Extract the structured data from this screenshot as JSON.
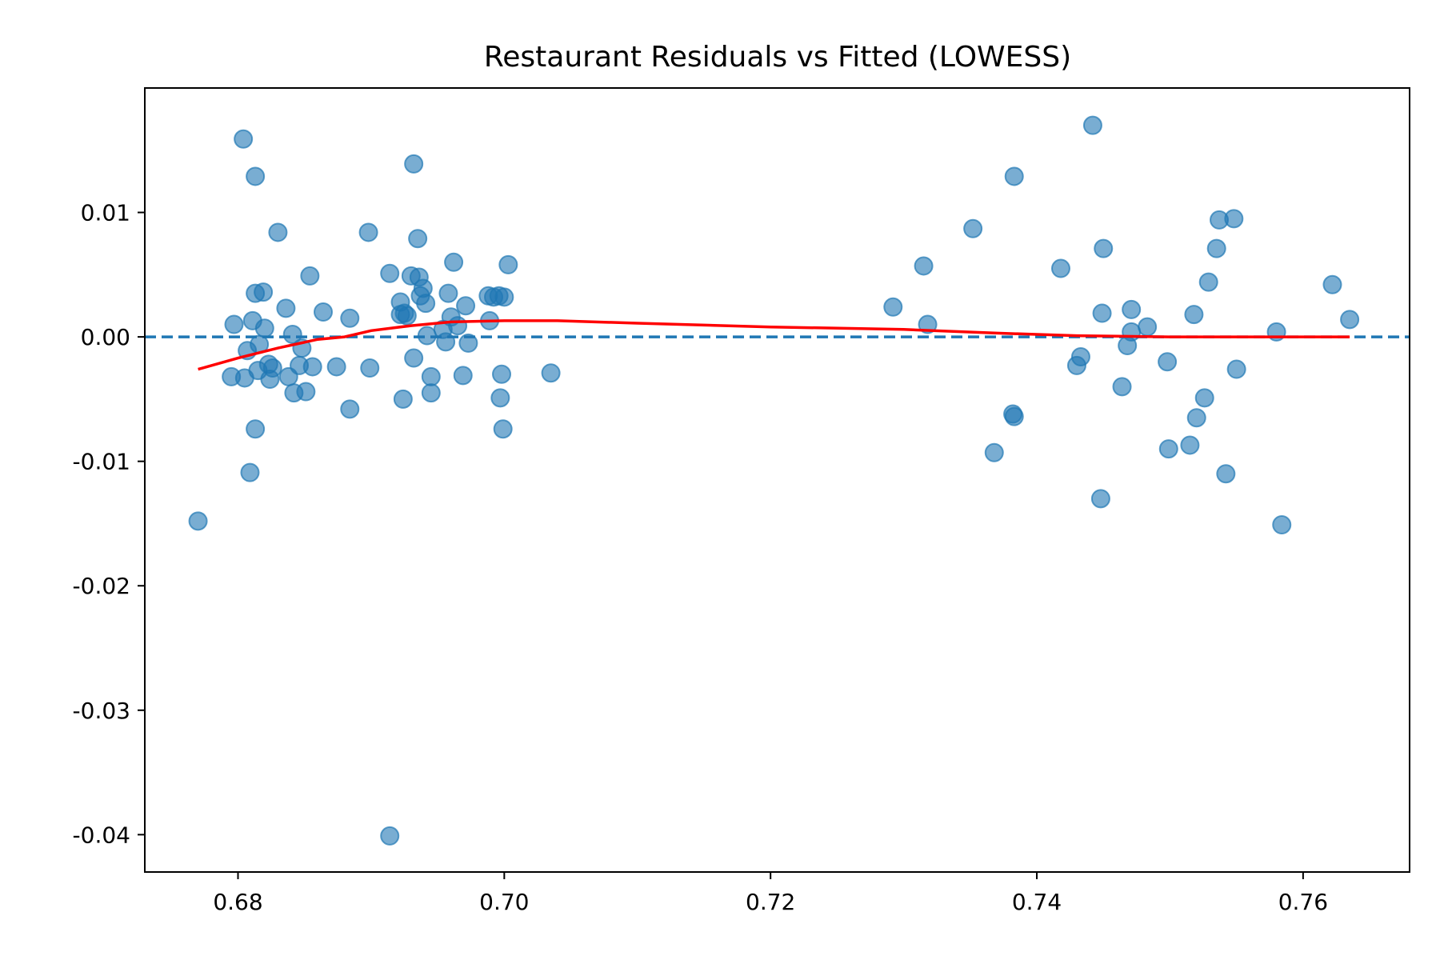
{
  "chart_data": {
    "type": "scatter",
    "title": "Restaurant Residuals vs Fitted (LOWESS)",
    "xlabel": "",
    "ylabel": "",
    "xlim": [
      0.673,
      0.768
    ],
    "ylim": [
      -0.043,
      0.02
    ],
    "grid": false,
    "x_ticks": [
      0.68,
      0.7,
      0.72,
      0.74,
      0.76
    ],
    "x_tick_labels": [
      "0.68",
      "0.70",
      "0.72",
      "0.74",
      "0.76"
    ],
    "y_ticks": [
      0.01,
      0.0,
      -0.01,
      -0.02,
      -0.03,
      -0.04
    ],
    "y_tick_labels": [
      "0.01",
      "0.00",
      "-0.01",
      "-0.02",
      "-0.03",
      "-0.04"
    ],
    "reference_line": {
      "y": 0.0,
      "style": "dashed",
      "color": "#1f77b4"
    },
    "colors": {
      "points": "#1f77b4",
      "lowess": "#ff0000"
    },
    "series": [
      {
        "kind": "points",
        "points": [
          [
            0.677,
            -0.0148
          ],
          [
            0.6797,
            0.001
          ],
          [
            0.6795,
            -0.0032
          ],
          [
            0.6804,
            0.0159
          ],
          [
            0.6805,
            -0.0033
          ],
          [
            0.6807,
            -0.0011
          ],
          [
            0.6809,
            -0.0109
          ],
          [
            0.6811,
            0.0013
          ],
          [
            0.6813,
            0.0129
          ],
          [
            0.6813,
            0.0035
          ],
          [
            0.6813,
            -0.0074
          ],
          [
            0.6815,
            -0.0027
          ],
          [
            0.6816,
            -0.0006
          ],
          [
            0.6819,
            0.0036
          ],
          [
            0.682,
            0.0007
          ],
          [
            0.6823,
            -0.0022
          ],
          [
            0.6824,
            -0.0034
          ],
          [
            0.6826,
            -0.0025
          ],
          [
            0.683,
            0.0084
          ],
          [
            0.6836,
            0.0023
          ],
          [
            0.6838,
            -0.0032
          ],
          [
            0.6841,
            0.0002
          ],
          [
            0.6842,
            -0.0045
          ],
          [
            0.6846,
            -0.0023
          ],
          [
            0.6848,
            -0.0009
          ],
          [
            0.6851,
            -0.0044
          ],
          [
            0.6854,
            0.0049
          ],
          [
            0.6856,
            -0.0024
          ],
          [
            0.6864,
            0.002
          ],
          [
            0.6874,
            -0.0024
          ],
          [
            0.6884,
            0.0015
          ],
          [
            0.6884,
            -0.0058
          ],
          [
            0.6898,
            0.0084
          ],
          [
            0.6899,
            -0.0025
          ],
          [
            0.6914,
            0.0051
          ],
          [
            0.6914,
            -0.0401
          ],
          [
            0.6922,
            0.0028
          ],
          [
            0.6922,
            0.0018
          ],
          [
            0.6924,
            -0.005
          ],
          [
            0.6925,
            0.0019
          ],
          [
            0.6927,
            0.0017
          ],
          [
            0.693,
            0.0049
          ],
          [
            0.6932,
            0.0139
          ],
          [
            0.6932,
            -0.0017
          ],
          [
            0.6935,
            0.0079
          ],
          [
            0.6936,
            0.0048
          ],
          [
            0.6937,
            0.0033
          ],
          [
            0.6939,
            0.0039
          ],
          [
            0.6941,
            0.0027
          ],
          [
            0.6942,
            0.0001
          ],
          [
            0.6945,
            -0.0032
          ],
          [
            0.6945,
            -0.0045
          ],
          [
            0.6954,
            0.0006
          ],
          [
            0.6956,
            -0.0004
          ],
          [
            0.6958,
            0.0035
          ],
          [
            0.696,
            0.0016
          ],
          [
            0.6962,
            0.006
          ],
          [
            0.6965,
            0.0009
          ],
          [
            0.6969,
            -0.0031
          ],
          [
            0.6971,
            0.0025
          ],
          [
            0.6973,
            -0.0005
          ],
          [
            0.6988,
            0.0033
          ],
          [
            0.6989,
            0.0013
          ],
          [
            0.6992,
            0.0032
          ],
          [
            0.6996,
            0.0033
          ],
          [
            0.6997,
            -0.0049
          ],
          [
            0.6998,
            -0.003
          ],
          [
            0.6999,
            -0.0074
          ],
          [
            0.7,
            0.0032
          ],
          [
            0.7003,
            0.0058
          ],
          [
            0.7035,
            -0.0029
          ],
          [
            0.7292,
            0.0024
          ],
          [
            0.7315,
            0.0057
          ],
          [
            0.7318,
            0.001
          ],
          [
            0.7352,
            0.0087
          ],
          [
            0.7368,
            -0.0093
          ],
          [
            0.7382,
            -0.0062
          ],
          [
            0.7383,
            -0.0064
          ],
          [
            0.7383,
            0.0129
          ],
          [
            0.7418,
            0.0055
          ],
          [
            0.743,
            -0.0023
          ],
          [
            0.7433,
            -0.0016
          ],
          [
            0.7442,
            0.017
          ],
          [
            0.7448,
            -0.013
          ],
          [
            0.7449,
            0.0019
          ],
          [
            0.745,
            0.0071
          ],
          [
            0.7464,
            -0.004
          ],
          [
            0.7468,
            -0.0007
          ],
          [
            0.7471,
            0.0022
          ],
          [
            0.7471,
            0.0004
          ],
          [
            0.7483,
            0.0008
          ],
          [
            0.7498,
            -0.002
          ],
          [
            0.7499,
            -0.009
          ],
          [
            0.7515,
            -0.0087
          ],
          [
            0.7518,
            0.0018
          ],
          [
            0.752,
            -0.0065
          ],
          [
            0.7526,
            -0.0049
          ],
          [
            0.7529,
            0.0044
          ],
          [
            0.7535,
            0.0071
          ],
          [
            0.7537,
            0.0094
          ],
          [
            0.7542,
            -0.011
          ],
          [
            0.7548,
            0.0095
          ],
          [
            0.755,
            -0.0026
          ],
          [
            0.758,
            0.0004
          ],
          [
            0.7584,
            -0.0151
          ],
          [
            0.7622,
            0.0042
          ],
          [
            0.7635,
            0.0014
          ]
        ]
      },
      {
        "kind": "lowess",
        "points": [
          [
            0.677,
            -0.0026
          ],
          [
            0.68,
            -0.0017
          ],
          [
            0.683,
            -0.0009
          ],
          [
            0.686,
            -0.0002
          ],
          [
            0.688,
            0.0
          ],
          [
            0.69,
            0.0005
          ],
          [
            0.693,
            0.0009
          ],
          [
            0.696,
            0.0012
          ],
          [
            0.7,
            0.0013
          ],
          [
            0.704,
            0.0013
          ],
          [
            0.71,
            0.0011
          ],
          [
            0.72,
            0.0008
          ],
          [
            0.73,
            0.0006
          ],
          [
            0.737,
            0.0003
          ],
          [
            0.743,
            0.0001
          ],
          [
            0.75,
            0.0
          ],
          [
            0.756,
            0.0
          ],
          [
            0.7635,
            0.0
          ]
        ]
      }
    ]
  }
}
